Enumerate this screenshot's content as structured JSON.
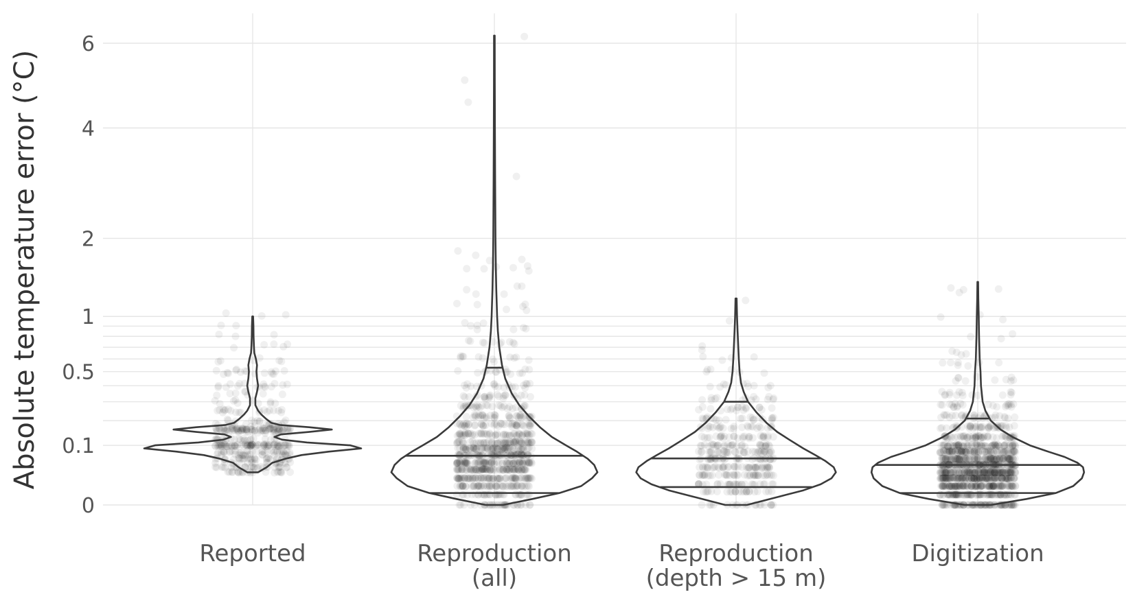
{
  "chart_data": {
    "type": "violin",
    "ylabel": "Absolute temperature error (°C)",
    "y_scale": "sqrt",
    "ylim": [
      0,
      6.8
    ],
    "y_ticks": [
      0,
      0.1,
      0.5,
      1,
      2,
      4,
      6
    ],
    "y_tick_labels": [
      "0",
      "0.1",
      "0.5",
      "1",
      "2",
      "4",
      "6"
    ],
    "minor_gridlines": [
      0.2,
      0.3,
      0.4,
      0.6,
      0.7,
      0.8,
      0.9
    ],
    "categories": [
      {
        "label_lines": [
          "Reported"
        ],
        "min": 0.03,
        "max": 1.0,
        "quantiles": [],
        "profile": [
          [
            0.03,
            0.05
          ],
          [
            0.04,
            0.13
          ],
          [
            0.05,
            0.18
          ],
          [
            0.06,
            0.3
          ],
          [
            0.07,
            0.45
          ],
          [
            0.08,
            0.7
          ],
          [
            0.09,
            1.0
          ],
          [
            0.1,
            0.9
          ],
          [
            0.11,
            0.5
          ],
          [
            0.12,
            0.27
          ],
          [
            0.13,
            0.2
          ],
          [
            0.14,
            0.26
          ],
          [
            0.15,
            0.52
          ],
          [
            0.16,
            0.73
          ],
          [
            0.17,
            0.52
          ],
          [
            0.18,
            0.25
          ],
          [
            0.19,
            0.17
          ],
          [
            0.21,
            0.12
          ],
          [
            0.23,
            0.08
          ],
          [
            0.25,
            0.05
          ],
          [
            0.28,
            0.025
          ],
          [
            0.32,
            0.025
          ],
          [
            0.36,
            0.04
          ],
          [
            0.4,
            0.05
          ],
          [
            0.45,
            0.04
          ],
          [
            0.5,
            0.035
          ],
          [
            0.55,
            0.04
          ],
          [
            0.6,
            0.03
          ],
          [
            0.65,
            0.015
          ],
          [
            0.7,
            0.012
          ],
          [
            0.8,
            0.008
          ],
          [
            0.9,
            0.007
          ],
          [
            1.0,
            0.004
          ]
        ]
      },
      {
        "label_lines": [
          "Reproduction",
          "(all)"
        ],
        "min": 0.0,
        "max": 6.2,
        "quantiles": [
          0.004,
          0.068,
          0.53
        ],
        "profile": [
          [
            0.0,
            0.08
          ],
          [
            0.001,
            0.35
          ],
          [
            0.004,
            0.6
          ],
          [
            0.01,
            0.8
          ],
          [
            0.02,
            0.9
          ],
          [
            0.03,
            0.95
          ],
          [
            0.045,
            0.92
          ],
          [
            0.06,
            0.86
          ],
          [
            0.08,
            0.76
          ],
          [
            0.1,
            0.66
          ],
          [
            0.13,
            0.53
          ],
          [
            0.17,
            0.42
          ],
          [
            0.22,
            0.32
          ],
          [
            0.28,
            0.23
          ],
          [
            0.35,
            0.16
          ],
          [
            0.45,
            0.1
          ],
          [
            0.55,
            0.07
          ],
          [
            0.7,
            0.045
          ],
          [
            0.85,
            0.032
          ],
          [
            1.0,
            0.025
          ],
          [
            1.3,
            0.018
          ],
          [
            1.6,
            0.013
          ],
          [
            2.0,
            0.01
          ],
          [
            3.0,
            0.007
          ],
          [
            4.0,
            0.005
          ],
          [
            5.0,
            0.004
          ],
          [
            6.2,
            0.003
          ]
        ]
      },
      {
        "label_lines": [
          "Reproduction",
          "(depth > 15 m)"
        ],
        "min": 0.0,
        "max": 1.2,
        "quantiles": [
          0.009,
          0.061,
          0.3
        ],
        "profile": [
          [
            0.0,
            0.1
          ],
          [
            0.002,
            0.4
          ],
          [
            0.006,
            0.62
          ],
          [
            0.012,
            0.78
          ],
          [
            0.02,
            0.88
          ],
          [
            0.03,
            0.92
          ],
          [
            0.04,
            0.9
          ],
          [
            0.055,
            0.82
          ],
          [
            0.07,
            0.73
          ],
          [
            0.09,
            0.62
          ],
          [
            0.12,
            0.49
          ],
          [
            0.15,
            0.38
          ],
          [
            0.19,
            0.28
          ],
          [
            0.24,
            0.19
          ],
          [
            0.3,
            0.11
          ],
          [
            0.36,
            0.07
          ],
          [
            0.42,
            0.045
          ],
          [
            0.5,
            0.032
          ],
          [
            0.6,
            0.025
          ],
          [
            0.7,
            0.02
          ],
          [
            0.85,
            0.014
          ],
          [
            1.0,
            0.009
          ],
          [
            1.2,
            0.005
          ]
        ]
      },
      {
        "label_lines": [
          "Digitization"
        ],
        "min": 0.0,
        "max": 1.4,
        "quantiles": [
          0.004,
          0.045,
          0.21
        ],
        "profile": [
          [
            0.0,
            0.12
          ],
          [
            0.001,
            0.45
          ],
          [
            0.004,
            0.72
          ],
          [
            0.01,
            0.88
          ],
          [
            0.02,
            0.96
          ],
          [
            0.03,
            0.98
          ],
          [
            0.04,
            0.97
          ],
          [
            0.05,
            0.92
          ],
          [
            0.065,
            0.8
          ],
          [
            0.08,
            0.65
          ],
          [
            0.1,
            0.48
          ],
          [
            0.13,
            0.32
          ],
          [
            0.16,
            0.21
          ],
          [
            0.2,
            0.12
          ],
          [
            0.25,
            0.07
          ],
          [
            0.3,
            0.045
          ],
          [
            0.4,
            0.03
          ],
          [
            0.5,
            0.025
          ],
          [
            0.6,
            0.018
          ],
          [
            0.8,
            0.012
          ],
          [
            1.0,
            0.009
          ],
          [
            1.2,
            0.005
          ],
          [
            1.4,
            0.003
          ]
        ]
      }
    ],
    "points": [
      {
        "category": 0,
        "groups": [
          [
            0.03,
            22
          ],
          [
            0.04,
            28
          ],
          [
            0.05,
            18
          ],
          [
            0.06,
            30
          ],
          [
            0.07,
            20
          ],
          [
            0.08,
            30
          ],
          [
            0.1,
            80
          ],
          [
            0.12,
            25
          ],
          [
            0.15,
            20
          ],
          [
            0.16,
            70
          ],
          [
            0.18,
            18
          ],
          [
            0.2,
            10
          ],
          [
            0.25,
            20
          ],
          [
            0.3,
            10
          ],
          [
            0.35,
            8
          ],
          [
            0.4,
            16
          ],
          [
            0.5,
            16
          ],
          [
            0.6,
            6
          ],
          [
            0.7,
            5
          ],
          [
            0.8,
            3
          ],
          [
            0.9,
            2
          ],
          [
            1.0,
            3
          ]
        ]
      },
      {
        "category": 1,
        "groups": [
          [
            0.0,
            35
          ],
          [
            0.003,
            35
          ],
          [
            0.01,
            60
          ],
          [
            0.02,
            80
          ],
          [
            0.035,
            90
          ],
          [
            0.05,
            90
          ],
          [
            0.07,
            85
          ],
          [
            0.09,
            75
          ],
          [
            0.11,
            65
          ],
          [
            0.14,
            60
          ],
          [
            0.18,
            50
          ],
          [
            0.22,
            40
          ],
          [
            0.27,
            32
          ],
          [
            0.33,
            25
          ],
          [
            0.4,
            20
          ],
          [
            0.5,
            16
          ],
          [
            0.6,
            12
          ],
          [
            0.75,
            10
          ],
          [
            0.9,
            8
          ],
          [
            1.1,
            6
          ],
          [
            1.3,
            5
          ],
          [
            1.55,
            6
          ],
          [
            1.75,
            4
          ],
          [
            3.0,
            1
          ],
          [
            4.4,
            1
          ],
          [
            4.9,
            1
          ],
          [
            6.15,
            1
          ]
        ]
      },
      {
        "category": 2,
        "groups": [
          [
            0.0,
            20
          ],
          [
            0.005,
            25
          ],
          [
            0.012,
            30
          ],
          [
            0.025,
            40
          ],
          [
            0.04,
            45
          ],
          [
            0.06,
            40
          ],
          [
            0.08,
            38
          ],
          [
            0.1,
            32
          ],
          [
            0.13,
            30
          ],
          [
            0.17,
            26
          ],
          [
            0.21,
            22
          ],
          [
            0.26,
            18
          ],
          [
            0.32,
            14
          ],
          [
            0.4,
            10
          ],
          [
            0.5,
            6
          ],
          [
            0.6,
            4
          ],
          [
            0.7,
            2
          ],
          [
            0.95,
            1
          ],
          [
            1.15,
            1
          ]
        ]
      },
      {
        "category": 3,
        "groups": [
          [
            0.0,
            90
          ],
          [
            0.003,
            90
          ],
          [
            0.01,
            130
          ],
          [
            0.02,
            150
          ],
          [
            0.03,
            150
          ],
          [
            0.045,
            140
          ],
          [
            0.06,
            120
          ],
          [
            0.08,
            100
          ],
          [
            0.1,
            80
          ],
          [
            0.13,
            60
          ],
          [
            0.17,
            45
          ],
          [
            0.22,
            32
          ],
          [
            0.28,
            22
          ],
          [
            0.35,
            15
          ],
          [
            0.45,
            10
          ],
          [
            0.55,
            7
          ],
          [
            0.65,
            4
          ],
          [
            0.8,
            3
          ],
          [
            1.0,
            3
          ],
          [
            1.3,
            4
          ]
        ]
      }
    ]
  }
}
